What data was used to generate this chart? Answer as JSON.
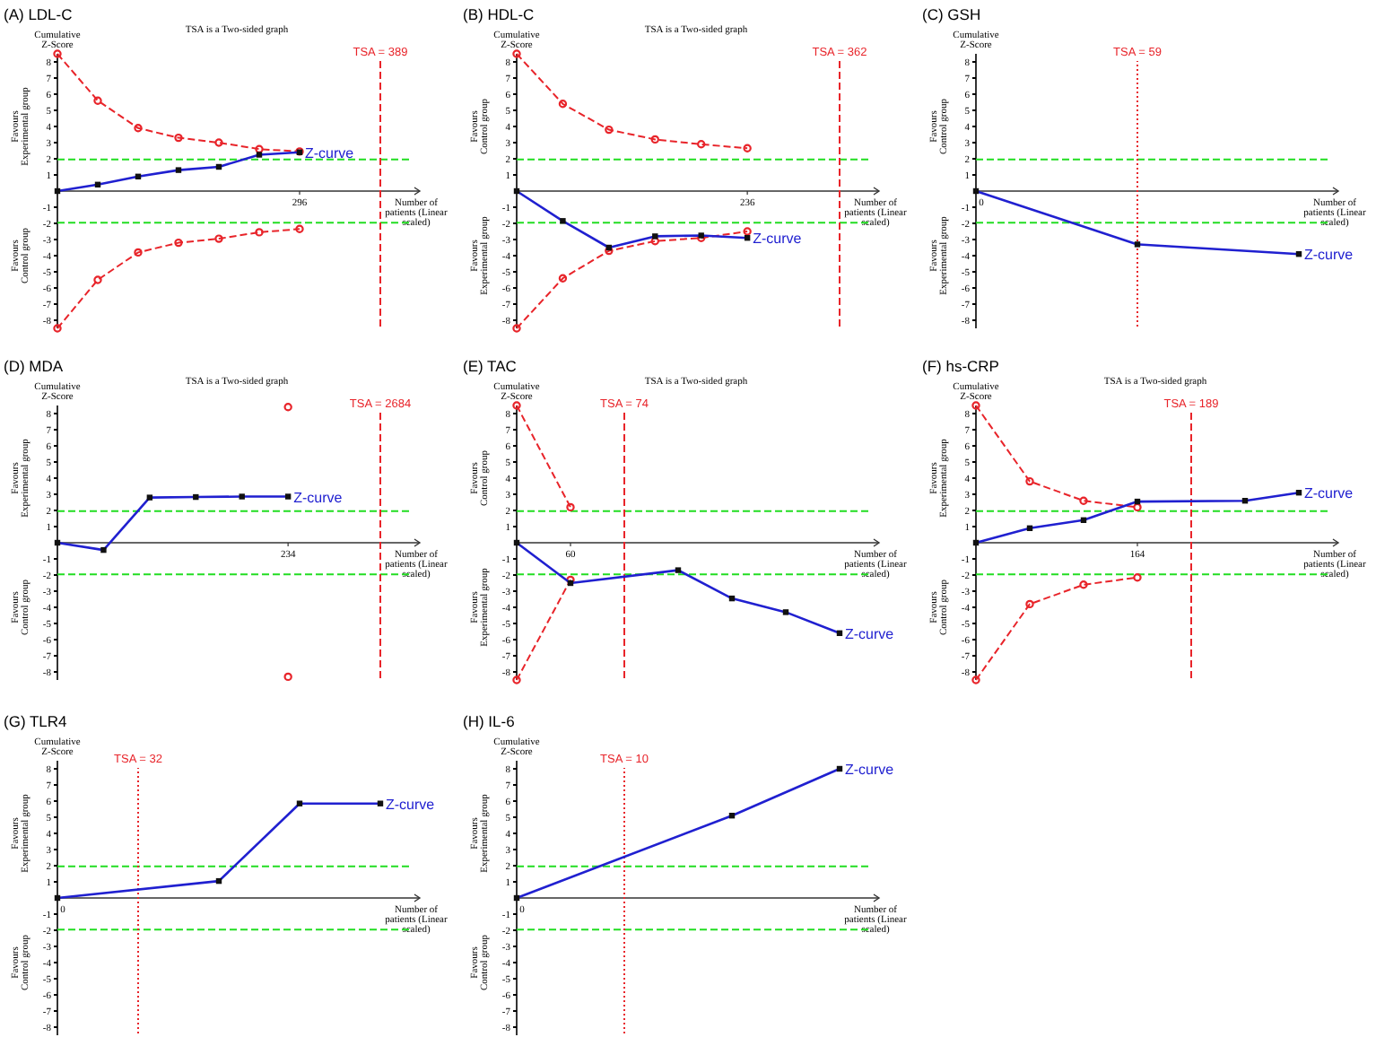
{
  "chart_data": [
    {
      "type": "line",
      "title": "(A) LDL-C",
      "subtitle": "TSA is a Two-sided graph",
      "xlabel": "Number of patients (Linear scaled)",
      "ylabel": "Cumulative Z-Score",
      "annotations": [
        "Favours Experimental group",
        "Favours Control group"
      ],
      "categories": [
        null,
        null,
        null,
        null,
        null,
        null,
        "296",
        null,
        "TSA = 389"
      ],
      "ylim": [
        -8.5,
        8.5
      ],
      "yticks": [
        -8,
        -7,
        -6,
        -5,
        -4,
        -3,
        -2,
        -1,
        1,
        2,
        3,
        4,
        5,
        6,
        7,
        8
      ],
      "legend": false,
      "grid": false,
      "ref_lines": [
        {
          "axis": "y",
          "value": 1.96,
          "color": "#22dd22",
          "line_style": "dashed"
        },
        {
          "axis": "y",
          "value": -1.96,
          "color": "#22dd22",
          "line_style": "dashed"
        },
        {
          "axis": "x",
          "value": "TSA = 389",
          "color": "#e8242a",
          "line_style": "dashed"
        }
      ],
      "series": [
        {
          "name": "Z-curve",
          "color": "#2020d0",
          "marker": "square",
          "values": [
            0,
            0.4,
            0.9,
            1.3,
            1.5,
            2.25,
            2.4,
            null,
            null
          ]
        },
        {
          "color": "#e8242a",
          "marker": "circle",
          "line_style": "dashed",
          "values": [
            8.5,
            5.6,
            3.9,
            3.3,
            3.0,
            2.6,
            2.45,
            null,
            null
          ]
        },
        {
          "color": "#e8242a",
          "marker": "circle",
          "line_style": "dashed",
          "values": [
            -8.5,
            -5.5,
            -3.8,
            -3.2,
            -2.95,
            -2.55,
            -2.35,
            null,
            null
          ]
        }
      ]
    },
    {
      "type": "line",
      "title": "(B) HDL-C",
      "subtitle": "TSA is a Two-sided graph",
      "xlabel": "Number of patients (Linear scaled)",
      "ylabel": "Cumulative Z-Score",
      "annotations": [
        "Favours Control group",
        "Favours Experimental group"
      ],
      "categories": [
        null,
        null,
        null,
        null,
        null,
        "236",
        null,
        "TSA = 362"
      ],
      "ylim": [
        -8.5,
        8.5
      ],
      "yticks": [
        -8,
        -7,
        -6,
        -5,
        -4,
        -3,
        -2,
        -1,
        1,
        2,
        3,
        4,
        5,
        6,
        7,
        8
      ],
      "legend": false,
      "grid": false,
      "ref_lines": [
        {
          "axis": "y",
          "value": 1.96,
          "color": "#22dd22",
          "line_style": "dashed"
        },
        {
          "axis": "y",
          "value": -1.96,
          "color": "#22dd22",
          "line_style": "dashed"
        },
        {
          "axis": "x",
          "value": "TSA = 362",
          "color": "#e8242a",
          "line_style": "dashed"
        }
      ],
      "series": [
        {
          "name": "Z-curve",
          "color": "#2020d0",
          "marker": "square",
          "values": [
            0,
            -1.85,
            -3.5,
            -2.8,
            -2.75,
            -2.9,
            null,
            null
          ]
        },
        {
          "color": "#e8242a",
          "marker": "circle",
          "line_style": "dashed",
          "values": [
            8.5,
            5.4,
            3.8,
            3.2,
            2.9,
            2.65,
            null,
            null
          ]
        },
        {
          "color": "#e8242a",
          "marker": "circle",
          "line_style": "dashed",
          "values": [
            -8.5,
            -5.4,
            -3.7,
            -3.1,
            -2.9,
            -2.5,
            null,
            null
          ]
        }
      ]
    },
    {
      "type": "line",
      "title": "(C) GSH",
      "xlabel": "Number of patients (Linear scaled)",
      "ylabel": "Cumulative Z-Score",
      "annotations": [
        "Favours Control group",
        "Favours Experimental group"
      ],
      "categories": [
        "0",
        "TSA = 59",
        null
      ],
      "ylim": [
        -8.5,
        8.5
      ],
      "yticks": [
        -8,
        -7,
        -6,
        -5,
        -4,
        -3,
        -2,
        -1,
        1,
        2,
        3,
        4,
        5,
        6,
        7,
        8
      ],
      "legend": false,
      "grid": false,
      "ref_lines": [
        {
          "axis": "y",
          "value": 1.96,
          "color": "#22dd22",
          "line_style": "dashed"
        },
        {
          "axis": "y",
          "value": -1.96,
          "color": "#22dd22",
          "line_style": "dashed"
        },
        {
          "axis": "x",
          "value": "TSA = 59",
          "color": "#e8242a",
          "line_style": "dotted"
        }
      ],
      "series": [
        {
          "name": "Z-curve",
          "color": "#2020d0",
          "marker": "square",
          "values": [
            0,
            -3.3,
            -3.9
          ]
        }
      ]
    },
    {
      "type": "line",
      "title": "(D) MDA",
      "subtitle": "TSA is a Two-sided graph",
      "xlabel": "Number of patients (Linear scaled)",
      "ylabel": "Cumulative Z-Score",
      "annotations": [
        "Favours Experimental group",
        "Favours Control group"
      ],
      "categories": [
        null,
        null,
        null,
        null,
        null,
        "234",
        null,
        "TSA = 2684"
      ],
      "ylim": [
        -8.5,
        8.5
      ],
      "yticks": [
        -8,
        -7,
        -6,
        -5,
        -4,
        -3,
        -2,
        -1,
        1,
        2,
        3,
        4,
        5,
        6,
        7,
        8
      ],
      "legend": false,
      "grid": false,
      "ref_lines": [
        {
          "axis": "y",
          "value": 1.96,
          "color": "#22dd22",
          "line_style": "dashed"
        },
        {
          "axis": "y",
          "value": -1.96,
          "color": "#22dd22",
          "line_style": "dashed"
        },
        {
          "axis": "x",
          "value": "TSA = 2684",
          "color": "#e8242a",
          "line_style": "dashed"
        }
      ],
      "series": [
        {
          "name": "Z-curve",
          "color": "#2020d0",
          "marker": "square",
          "values": [
            0,
            -0.45,
            2.8,
            2.83,
            2.86,
            2.86,
            null,
            null
          ]
        },
        {
          "color": "#e8242a",
          "marker": "circle",
          "line_style": "dashed",
          "values": [
            null,
            null,
            null,
            null,
            null,
            8.4,
            null,
            null
          ]
        },
        {
          "color": "#e8242a",
          "marker": "circle",
          "line_style": "dashed",
          "values": [
            null,
            null,
            null,
            null,
            null,
            -8.3,
            null,
            null
          ]
        }
      ]
    },
    {
      "type": "line",
      "title": "(E) TAC",
      "subtitle": "TSA is a Two-sided graph",
      "xlabel": "Number of patients (Linear scaled)",
      "ylabel": "Cumulative Z-Score",
      "annotations": [
        "Favours Control group",
        "Favours Experimental group"
      ],
      "categories": [
        null,
        "60",
        "TSA = 74",
        null,
        null,
        null,
        null
      ],
      "ylim": [
        -8.5,
        8.5
      ],
      "yticks": [
        -8,
        -7,
        -6,
        -5,
        -4,
        -3,
        -2,
        -1,
        1,
        2,
        3,
        4,
        5,
        6,
        7,
        8
      ],
      "legend": false,
      "grid": false,
      "ref_lines": [
        {
          "axis": "y",
          "value": 1.96,
          "color": "#22dd22",
          "line_style": "dashed"
        },
        {
          "axis": "y",
          "value": -1.96,
          "color": "#22dd22",
          "line_style": "dashed"
        },
        {
          "axis": "x",
          "value": "TSA = 74",
          "color": "#e8242a",
          "line_style": "dashed"
        }
      ],
      "series": [
        {
          "name": "Z-curve",
          "color": "#2020d0",
          "marker": "square",
          "values": [
            0,
            -2.5,
            null,
            -1.7,
            -3.45,
            -4.3,
            -5.6
          ]
        },
        {
          "color": "#e8242a",
          "marker": "circle",
          "line_style": "dashed",
          "values": [
            8.5,
            2.2,
            null,
            null,
            null,
            null,
            null
          ]
        },
        {
          "color": "#e8242a",
          "marker": "circle",
          "line_style": "dashed",
          "values": [
            -8.5,
            -2.3,
            null,
            null,
            null,
            null,
            null
          ]
        }
      ]
    },
    {
      "type": "line",
      "title": "(F) hs-CRP",
      "subtitle": "TSA is a Two-sided graph",
      "xlabel": "Number of patients (Linear scaled)",
      "ylabel": "Cumulative Z-Score",
      "annotations": [
        "Favours Experimental group",
        "Favours Control group"
      ],
      "categories": [
        null,
        null,
        null,
        "164",
        "TSA = 189",
        null,
        null
      ],
      "ylim": [
        -8.5,
        8.5
      ],
      "yticks": [
        -8,
        -7,
        -6,
        -5,
        -4,
        -3,
        -2,
        -1,
        1,
        2,
        3,
        4,
        5,
        6,
        7,
        8
      ],
      "legend": false,
      "grid": false,
      "ref_lines": [
        {
          "axis": "y",
          "value": 1.96,
          "color": "#22dd22",
          "line_style": "dashed"
        },
        {
          "axis": "y",
          "value": -1.96,
          "color": "#22dd22",
          "line_style": "dashed"
        },
        {
          "axis": "x",
          "value": "TSA = 189",
          "color": "#e8242a",
          "line_style": "dashed"
        }
      ],
      "series": [
        {
          "name": "Z-curve",
          "color": "#2020d0",
          "marker": "square",
          "values": [
            0,
            0.9,
            1.4,
            2.55,
            null,
            2.6,
            3.1
          ]
        },
        {
          "color": "#e8242a",
          "marker": "circle",
          "line_style": "dashed",
          "values": [
            8.5,
            3.8,
            2.6,
            2.2,
            null,
            null,
            null
          ]
        },
        {
          "color": "#e8242a",
          "marker": "circle",
          "line_style": "dashed",
          "values": [
            -8.5,
            -3.8,
            -2.6,
            -2.15,
            null,
            null,
            null
          ]
        }
      ]
    },
    {
      "type": "line",
      "title": "(G) TLR4",
      "xlabel": "Number of patients (Linear scaled)",
      "ylabel": "Cumulative Z-Score",
      "annotations": [
        "Favours Experimental group",
        "Favours Control group"
      ],
      "categories": [
        "0",
        "TSA = 32",
        null,
        null,
        null
      ],
      "ylim": [
        -8.5,
        8.5
      ],
      "yticks": [
        -8,
        -7,
        -6,
        -5,
        -4,
        -3,
        -2,
        -1,
        1,
        2,
        3,
        4,
        5,
        6,
        7,
        8
      ],
      "legend": false,
      "grid": false,
      "ref_lines": [
        {
          "axis": "y",
          "value": 1.96,
          "color": "#22dd22",
          "line_style": "dashed"
        },
        {
          "axis": "y",
          "value": -1.96,
          "color": "#22dd22",
          "line_style": "dashed"
        },
        {
          "axis": "x",
          "value": "TSA = 32",
          "color": "#e8242a",
          "line_style": "dotted"
        }
      ],
      "series": [
        {
          "name": "Z-curve",
          "color": "#2020d0",
          "marker": "square",
          "values": [
            0,
            null,
            1.05,
            5.85,
            5.85
          ]
        }
      ]
    },
    {
      "type": "line",
      "title": "(H) IL-6",
      "xlabel": "Number of patients (Linear scaled)",
      "ylabel": "Cumulative Z-Score",
      "annotations": [
        "Favours Experimental group",
        "Favours Control group"
      ],
      "categories": [
        "0",
        "TSA = 10",
        null,
        null
      ],
      "ylim": [
        -8.5,
        8.5
      ],
      "yticks": [
        -8,
        -7,
        -6,
        -5,
        -4,
        -3,
        -2,
        -1,
        1,
        2,
        3,
        4,
        5,
        6,
        7,
        8
      ],
      "legend": false,
      "grid": false,
      "ref_lines": [
        {
          "axis": "y",
          "value": 1.96,
          "color": "#22dd22",
          "line_style": "dashed"
        },
        {
          "axis": "y",
          "value": -1.96,
          "color": "#22dd22",
          "line_style": "dashed"
        },
        {
          "axis": "x",
          "value": "TSA = 10",
          "color": "#e8242a",
          "line_style": "dotted"
        }
      ],
      "series": [
        {
          "name": "Z-curve",
          "color": "#2020d0",
          "marker": "square",
          "values": [
            0,
            null,
            5.1,
            8.0
          ]
        }
      ]
    }
  ]
}
